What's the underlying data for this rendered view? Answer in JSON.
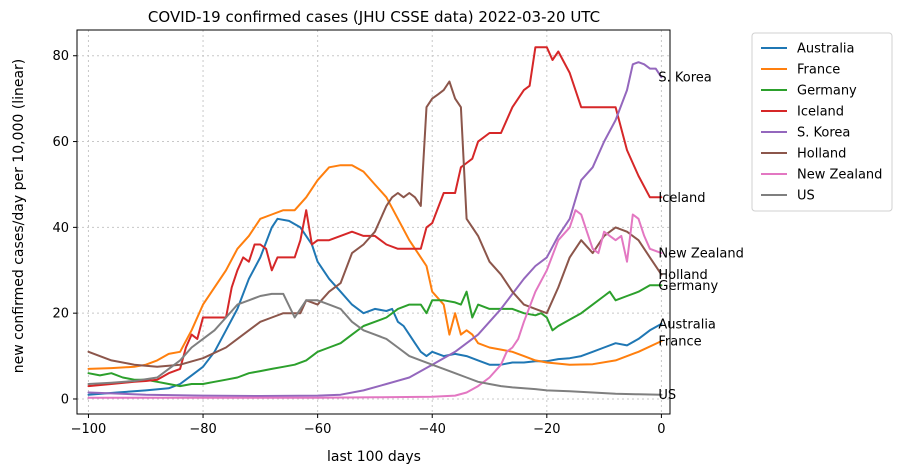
{
  "chart_data": {
    "type": "line",
    "title": "COVID-19 confirmed cases (JHU CSSE data) 2022-03-20 UTC",
    "xlabel": "last 100 days",
    "ylabel": "new confirmed cases/day per 10,000 (linear)",
    "xlim": [
      -102,
      1.5
    ],
    "ylim": [
      -3.5,
      86
    ],
    "xticks": [
      -100,
      -80,
      -60,
      -40,
      -20,
      0
    ],
    "xtick_labels": [
      "−100",
      "−80",
      "−60",
      "−40",
      "−20",
      "0"
    ],
    "yticks": [
      0,
      20,
      40,
      60,
      80
    ],
    "ytick_labels": [
      "0",
      "20",
      "40",
      "60",
      "80"
    ],
    "grid": true,
    "legend_position": "outside-right",
    "series": [
      {
        "name": "Australia",
        "end_label": "Australia",
        "color": "#1f77b4",
        "x": [
          -100,
          -95,
          -90,
          -86,
          -84,
          -82,
          -80,
          -78,
          -76,
          -74,
          -72,
          -70,
          -68,
          -67,
          -65,
          -63,
          -61,
          -60,
          -58,
          -56,
          -54,
          -52,
          -50,
          -48,
          -47,
          -46,
          -45,
          -44,
          -43,
          -42,
          -41,
          -40,
          -38,
          -36,
          -34,
          -32,
          -30,
          -28,
          -26,
          -24,
          -22,
          -20,
          -18,
          -16,
          -14,
          -12,
          -10,
          -8,
          -6,
          -4,
          -2,
          0
        ],
        "y": [
          1,
          1.5,
          2,
          2.5,
          3.5,
          5.5,
          7.5,
          11,
          16,
          21,
          28,
          33,
          40,
          42,
          41.5,
          40,
          36,
          32,
          28,
          25,
          22,
          20,
          21,
          20.5,
          21,
          18,
          17,
          15,
          13,
          11,
          10,
          11,
          10,
          10.5,
          10,
          9,
          8,
          8,
          8.5,
          8.5,
          8.8,
          8.8,
          9.3,
          9.5,
          10,
          11,
          12,
          13,
          12.5,
          14,
          16,
          17.5
        ]
      },
      {
        "name": "France",
        "end_label": "France",
        "color": "#ff7f0e",
        "x": [
          -100,
          -96,
          -92,
          -90,
          -88,
          -86,
          -84,
          -82,
          -80,
          -78,
          -76,
          -74,
          -72,
          -70,
          -68,
          -66,
          -64,
          -62,
          -60,
          -58,
          -56,
          -54,
          -52,
          -50,
          -48,
          -46,
          -44,
          -42,
          -41,
          -40,
          -38,
          -37,
          -36,
          -35,
          -34,
          -33,
          -32,
          -30,
          -28,
          -26,
          -24,
          -22,
          -20,
          -16,
          -12,
          -8,
          -4,
          0
        ],
        "y": [
          7,
          7.2,
          7.5,
          8,
          9,
          10.5,
          11,
          16,
          22,
          26,
          30,
          35,
          38,
          42,
          43,
          44,
          44,
          47,
          51,
          54,
          54.5,
          54.5,
          53,
          50,
          47,
          42,
          37,
          33,
          31,
          25,
          22,
          15,
          20,
          15,
          16,
          15,
          13,
          12,
          11.5,
          11,
          10,
          9,
          8.5,
          8,
          8.1,
          9,
          11,
          13.5
        ]
      },
      {
        "name": "Germany",
        "end_label": "Germany",
        "color": "#2ca02c",
        "x": [
          -100,
          -98,
          -96,
          -94,
          -92,
          -90,
          -88,
          -86,
          -84,
          -82,
          -80,
          -78,
          -76,
          -74,
          -72,
          -70,
          -68,
          -66,
          -64,
          -62,
          -60,
          -58,
          -56,
          -54,
          -52,
          -50,
          -48,
          -46,
          -44,
          -42,
          -41,
          -40,
          -38,
          -36,
          -35,
          -34,
          -33,
          -32,
          -30,
          -28,
          -26,
          -24,
          -22,
          -21,
          -20,
          -19,
          -18,
          -16,
          -14,
          -12,
          -10,
          -9,
          -8,
          -6,
          -4,
          -2,
          0
        ],
        "y": [
          6,
          5.5,
          6,
          5,
          4.5,
          4.5,
          4,
          3.5,
          3,
          3.5,
          3.5,
          4,
          4.5,
          5,
          6,
          6.5,
          7,
          7.5,
          8,
          9,
          11,
          12,
          13,
          15,
          17,
          18,
          19,
          21,
          22,
          22,
          20,
          23,
          23,
          22.5,
          22,
          25,
          19,
          22,
          21,
          21,
          21,
          20,
          19.5,
          20,
          19,
          16,
          17,
          18.5,
          20,
          22,
          24,
          25,
          23,
          24,
          25,
          26.5,
          26.5
        ]
      },
      {
        "name": "Iceland",
        "end_label": "Iceland",
        "color": "#d62728",
        "x": [
          -100,
          -96,
          -92,
          -90,
          -88,
          -86,
          -84,
          -83,
          -82,
          -81,
          -80,
          -78,
          -76,
          -75,
          -74,
          -73,
          -72,
          -71,
          -70,
          -69,
          -68,
          -67,
          -66,
          -65,
          -64,
          -63,
          -62,
          -61,
          -60,
          -58,
          -56,
          -54,
          -52,
          -50,
          -48,
          -46,
          -44,
          -42,
          -41,
          -40,
          -38,
          -36,
          -35,
          -34,
          -33,
          -32,
          -30,
          -28,
          -26,
          -25,
          -24,
          -23,
          -22,
          -21,
          -20,
          -19,
          -18,
          -16,
          -14,
          -12,
          -10,
          -8,
          -7,
          -6,
          -4,
          -2,
          0
        ],
        "y": [
          3,
          3.5,
          4,
          4.2,
          4.5,
          6,
          7,
          12,
          15,
          14,
          19,
          19,
          19,
          26,
          30,
          33,
          32,
          36,
          36,
          35,
          30,
          33,
          33,
          33,
          33,
          37,
          44,
          36,
          37,
          37,
          38,
          39,
          38,
          38,
          36,
          35,
          35,
          35,
          40,
          41,
          48,
          48,
          54,
          55,
          56,
          60,
          62,
          62,
          68,
          70,
          72,
          73,
          82,
          82,
          82,
          79,
          81,
          76,
          68,
          68,
          68,
          68,
          63,
          58,
          52,
          47,
          47
        ]
      },
      {
        "name": "S. Korea",
        "end_label": "S. Korea",
        "color": "#9467bd",
        "x": [
          -100,
          -90,
          -80,
          -70,
          -60,
          -56,
          -52,
          -48,
          -44,
          -40,
          -36,
          -32,
          -28,
          -24,
          -22,
          -20,
          -18,
          -16,
          -14,
          -12,
          -10,
          -8,
          -6,
          -5,
          -4,
          -3,
          -2,
          -1,
          0
        ],
        "y": [
          1.5,
          1,
          0.8,
          0.7,
          0.8,
          1,
          2,
          3.5,
          5,
          8,
          11,
          15,
          21,
          28,
          31,
          33,
          38,
          42,
          51,
          54,
          60,
          65,
          72,
          78,
          78.5,
          78,
          77,
          77,
          75
        ]
      },
      {
        "name": "Holland",
        "end_label": "Holland",
        "color": "#8c564b",
        "x": [
          -100,
          -96,
          -92,
          -88,
          -84,
          -80,
          -76,
          -74,
          -72,
          -70,
          -68,
          -66,
          -64,
          -63,
          -62,
          -60,
          -58,
          -56,
          -54,
          -52,
          -50,
          -48,
          -47,
          -46,
          -45,
          -44,
          -43,
          -42,
          -41,
          -40,
          -39,
          -38,
          -37,
          -36,
          -35,
          -34,
          -32,
          -30,
          -28,
          -26,
          -24,
          -22,
          -20,
          -18,
          -16,
          -14,
          -12,
          -10,
          -8,
          -6,
          -4,
          -2,
          0
        ],
        "y": [
          11,
          9,
          8,
          7.5,
          8,
          9.5,
          12,
          14,
          16,
          18,
          19,
          20,
          20,
          20,
          23,
          22,
          25,
          27,
          34,
          36,
          39,
          45,
          47,
          48,
          47,
          48,
          47,
          45,
          68,
          70,
          71,
          72,
          74,
          70,
          68,
          42,
          38,
          32,
          29,
          25,
          22,
          21,
          20,
          26,
          33,
          37,
          34,
          38,
          40,
          39,
          37,
          33,
          29
        ]
      },
      {
        "name": "New Zealand",
        "end_label": "New Zealand",
        "color": "#e377c2",
        "x": [
          -100,
          -90,
          -80,
          -70,
          -60,
          -50,
          -40,
          -36,
          -34,
          -32,
          -30,
          -28,
          -27,
          -26,
          -25,
          -24,
          -22,
          -20,
          -18,
          -16,
          -15,
          -14,
          -13,
          -12,
          -11,
          -10,
          -9,
          -8,
          -7,
          -6,
          -5,
          -4,
          -3,
          -2,
          0
        ],
        "y": [
          0.3,
          0.3,
          0.3,
          0.3,
          0.3,
          0.4,
          0.5,
          0.8,
          1.5,
          3,
          5,
          8,
          11,
          12,
          14,
          18,
          25,
          30,
          37,
          40,
          44,
          43,
          39,
          35,
          34,
          39,
          38,
          37,
          38,
          32,
          43,
          42,
          38,
          35,
          34
        ]
      },
      {
        "name": "US",
        "end_label": "US",
        "color": "#7f7f7f",
        "x": [
          -100,
          -96,
          -92,
          -88,
          -86,
          -84,
          -82,
          -80,
          -78,
          -76,
          -74,
          -72,
          -70,
          -68,
          -66,
          -64,
          -62,
          -60,
          -58,
          -56,
          -54,
          -52,
          -50,
          -48,
          -46,
          -44,
          -42,
          -40,
          -38,
          -36,
          -34,
          -32,
          -30,
          -28,
          -26,
          -24,
          -22,
          -20,
          -16,
          -12,
          -8,
          -4,
          0
        ],
        "y": [
          3.5,
          3.8,
          4.2,
          5,
          7,
          9,
          12,
          14,
          16,
          19,
          22,
          23,
          24,
          24.5,
          24.5,
          19,
          23,
          23,
          22,
          21,
          18,
          16,
          15,
          14,
          12,
          10,
          9,
          8,
          7,
          6,
          5,
          4,
          3.5,
          3,
          2.7,
          2.5,
          2.3,
          2,
          1.8,
          1.5,
          1.2,
          1.1,
          1
        ]
      }
    ]
  }
}
